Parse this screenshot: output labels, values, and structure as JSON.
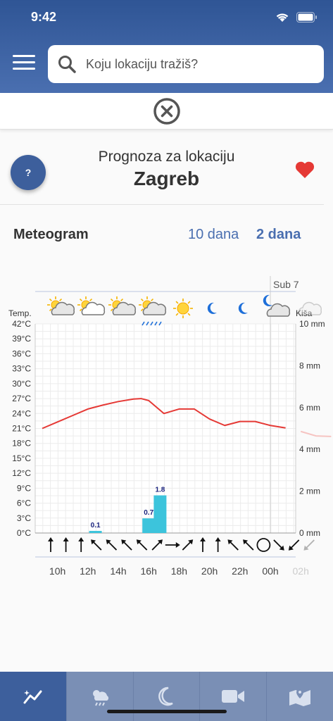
{
  "status": {
    "time": "9:42"
  },
  "search": {
    "placeholder": "Koju lokaciju tražiš?"
  },
  "location": {
    "subtitle": "Prognoza za lokaciju",
    "name": "Zagreb"
  },
  "help": {
    "label": "?"
  },
  "meteogram": {
    "title": "Meteogram",
    "tab_10": "10 dana",
    "tab_2": "2 dana"
  },
  "chart_data": {
    "type": "line",
    "day_label": "Sub 7",
    "temp_axis_label": "Temp.",
    "rain_axis_label": "Kiša",
    "temp_ticks": [
      "42°C",
      "39°C",
      "36°C",
      "33°C",
      "30°C",
      "27°C",
      "24°C",
      "21°C",
      "18°C",
      "15°C",
      "12°C",
      "9°C",
      "6°C",
      "3°C",
      "0°C"
    ],
    "rain_ticks": [
      "10 mm",
      "8 mm",
      "6 mm",
      "4 mm",
      "2 mm",
      "0 mm"
    ],
    "ylim_temp": [
      0,
      42
    ],
    "ylim_rain": [
      0,
      10
    ],
    "x_labels": [
      "10h",
      "12h",
      "14h",
      "16h",
      "18h",
      "20h",
      "22h",
      "00h",
      "02h"
    ],
    "x_hours": [
      10,
      12,
      14,
      16,
      18,
      20,
      22,
      24,
      26
    ],
    "temperature": {
      "hours": [
        9,
        10,
        11,
        12,
        13,
        14,
        15,
        15.5,
        16,
        17,
        18,
        19,
        20,
        21,
        22,
        23,
        24,
        25,
        26,
        27,
        28
      ],
      "values": [
        21.0,
        22.3,
        23.6,
        24.9,
        25.7,
        26.4,
        26.9,
        27.0,
        26.6,
        24.0,
        24.9,
        24.9,
        22.9,
        21.6,
        22.4,
        22.4,
        21.6,
        21.1,
        20.4,
        19.5,
        19.4
      ]
    },
    "precipitation": {
      "bars": [
        {
          "hour": 12.5,
          "value": 0.1,
          "label": "0.1"
        },
        {
          "hour": 16,
          "value": 0.7,
          "label": "0.7"
        },
        {
          "hour": 16.75,
          "value": 1.8,
          "label": "1.8"
        }
      ]
    },
    "weather_icons": [
      "partly-cloudy-icon",
      "partly-cloudy-icon",
      "partly-cloudy-icon",
      "partly-cloudy-rain-icon",
      "sun-icon",
      "moon-icon",
      "moon-icon",
      "moon-cloud-icon",
      "cloud-icon"
    ],
    "wind_icons": [
      "arrow-up-icon",
      "arrow-up-icon",
      "arrow-up-icon",
      "arrow-nw-icon",
      "arrow-nw-icon",
      "arrow-nw-icon",
      "arrow-nw-icon",
      "arrow-ne-icon",
      "arrow-right-icon",
      "arrow-ne-icon",
      "arrow-up-icon",
      "arrow-up-icon",
      "arrow-nw-icon",
      "arrow-nw-icon",
      "calm-circle-icon",
      "arrow-se-icon",
      "arrow-sw-icon",
      "arrow-sw-icon"
    ],
    "colors": {
      "temperature": "#e53935",
      "rain": "#3cc4dc",
      "rain_label": "#1a237e"
    }
  },
  "bottom_nav": [
    "meteogram-tab-icon",
    "forecast-tab-icon",
    "night-tab-icon",
    "camera-tab-icon",
    "map-tab-icon"
  ]
}
